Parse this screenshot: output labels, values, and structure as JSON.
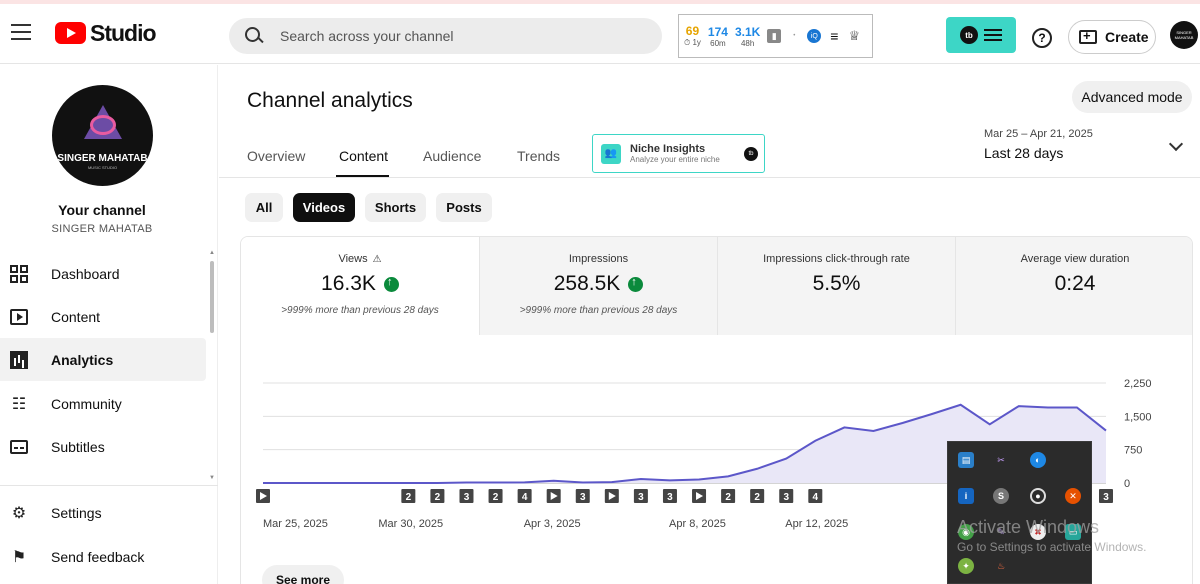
{
  "header": {
    "logo_text": "Studio",
    "search_placeholder": "Search across your channel",
    "stats_widget": {
      "items": [
        {
          "value": "69",
          "sub": "⏱ 1y",
          "color": "#e6a400"
        },
        {
          "value": "174",
          "sub": "60m",
          "color": "#1e88e5"
        },
        {
          "value": "3.1K",
          "sub": "48h",
          "color": "#1e88e5"
        }
      ]
    },
    "create_label": "Create",
    "avatar_text": "SINGER MAHATAB"
  },
  "sidebar": {
    "channel_avatar_name": "SINGER MAHATAB",
    "channel_avatar_sub": "MUSIC STUDIO",
    "your_channel_label": "Your channel",
    "channel_name": "SINGER MAHATAB",
    "items": [
      {
        "label": "Dashboard",
        "icon": "dashboard-icon"
      },
      {
        "label": "Content",
        "icon": "content-icon"
      },
      {
        "label": "Analytics",
        "icon": "analytics-icon",
        "active": true
      },
      {
        "label": "Community",
        "icon": "community-icon"
      },
      {
        "label": "Subtitles",
        "icon": "subtitles-icon"
      },
      {
        "label": "Settings",
        "icon": "settings-icon"
      },
      {
        "label": "Send feedback",
        "icon": "feedback-icon"
      }
    ]
  },
  "main": {
    "title": "Channel analytics",
    "advanced_mode_label": "Advanced mode",
    "tabs": [
      {
        "label": "Overview"
      },
      {
        "label": "Content",
        "active": true
      },
      {
        "label": "Audience"
      },
      {
        "label": "Trends"
      }
    ],
    "niche": {
      "title": "Niche Insights",
      "subtitle": "Analyze your entire niche"
    },
    "date_range": {
      "dates": "Mar 25 – Apr 21, 2025",
      "label": "Last 28 days"
    },
    "chips": [
      {
        "label": "All"
      },
      {
        "label": "Videos",
        "active": true
      },
      {
        "label": "Shorts"
      },
      {
        "label": "Posts"
      }
    ],
    "metrics": [
      {
        "label": "Views",
        "value": "16.3K",
        "change": ">999% more than previous 28 days"
      },
      {
        "label": "Impressions",
        "value": "258.5K",
        "change": ">999% more than previous 28 days"
      },
      {
        "label": "Impressions click-through rate",
        "value": "5.5%"
      },
      {
        "label": "Average view duration",
        "value": "0:24"
      }
    ],
    "see_more_label": "See more"
  },
  "chart_data": {
    "type": "area",
    "x_labels": [
      "Mar 25, 2025",
      "Mar 30, 2025",
      "Apr 3, 2025",
      "Apr 8, 2025",
      "Apr 12, 2025"
    ],
    "y_ticks": [
      "2,250",
      "1,500",
      "750",
      "0"
    ],
    "ylim": [
      0,
      2250
    ],
    "values": [
      0,
      0,
      0,
      0,
      0,
      0,
      0,
      10,
      10,
      15,
      50,
      10,
      20,
      90,
      60,
      80,
      150,
      320,
      550,
      950,
      1250,
      1170,
      1350,
      1550,
      1760,
      1320,
      1730,
      1700,
      1700,
      1180
    ],
    "markers": [
      "play",
      "",
      "",
      "",
      "",
      "2",
      "2",
      "3",
      "2",
      "4",
      "play",
      "3",
      "play",
      "3",
      "3",
      "play",
      "2",
      "2",
      "3",
      "4",
      "",
      "",
      "",
      "",
      "",
      "",
      "",
      "",
      "",
      "3"
    ],
    "series_color": "#5c57c9",
    "fill_color": "#e9e7f7",
    "grid": true
  },
  "tray": {
    "activate_title": "Activate Windows",
    "activate_sub": "Go to Settings to activate Windows."
  }
}
